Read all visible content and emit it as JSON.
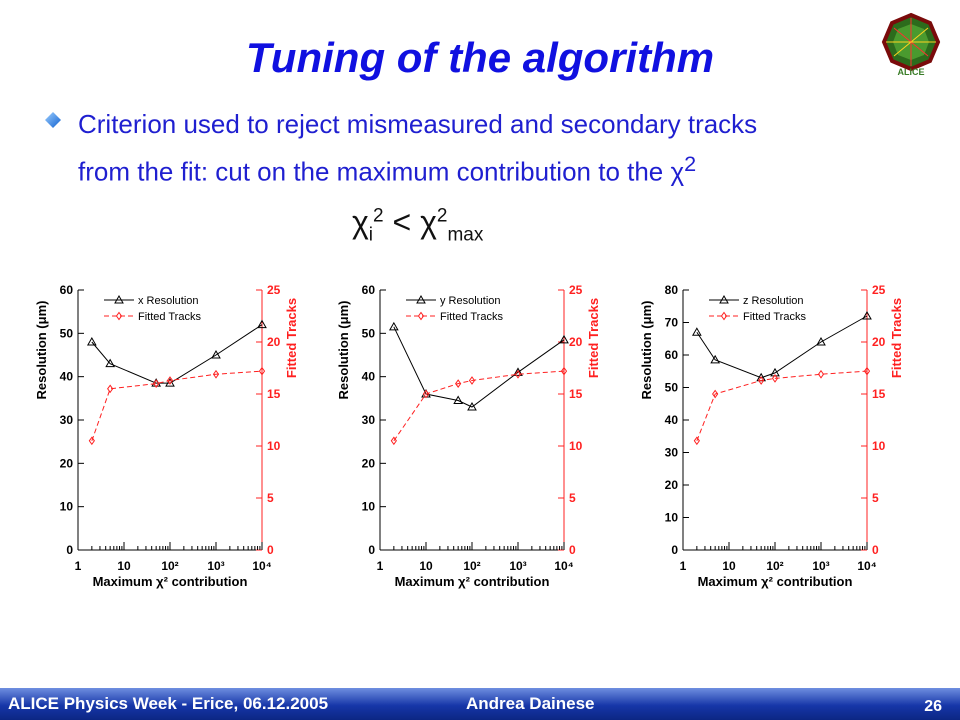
{
  "slide": {
    "title": "Tuning of the algorithm",
    "bullet_line1": "Criterion used to reject mismeasured and secondary tracks",
    "bullet_line2": "from the fit: cut on the maximum contribution to the ",
    "chi_symbol": "χ",
    "sq": "2",
    "formula": {
      "chi": "χ",
      "sub_i": "i",
      "sup2": "2",
      "lt": " < ",
      "sub_max": "max"
    }
  },
  "footer": {
    "event": "ALICE Physics Week - Erice, 06.12.2005",
    "author": "Andrea Dainese",
    "page": "26"
  },
  "logo": {
    "text": "ALICE",
    "color": "#3a7d28"
  },
  "colors": {
    "accent": "#1010e0",
    "resolution": "#000000",
    "fitted": "#ff2020"
  },
  "chart_data": [
    {
      "type": "line",
      "xscale": "log",
      "xlim": [
        1,
        10000
      ],
      "xticks": [
        "1",
        "10",
        "10²",
        "10³",
        "10⁴"
      ],
      "xlabel": "Maximum χ² contribution",
      "ylabel": "Resolution (μm)",
      "ylim": [
        0,
        60
      ],
      "yticks": [
        0,
        10,
        20,
        30,
        40,
        50,
        60
      ],
      "y2label": "Fitted Tracks",
      "y2lim": [
        0,
        25
      ],
      "y2ticks": [
        0,
        5,
        10,
        15,
        20,
        25
      ],
      "x": [
        2,
        5,
        50,
        100,
        1000,
        10000
      ],
      "series": [
        {
          "name": "x Resolution",
          "axis": "left",
          "values": [
            48,
            43,
            38.5,
            38.5,
            45,
            52
          ]
        },
        {
          "name": "Fitted Tracks",
          "axis": "right",
          "values": [
            10.5,
            15.5,
            16,
            16.3,
            16.9,
            17.2
          ]
        }
      ]
    },
    {
      "type": "line",
      "xscale": "log",
      "xlim": [
        1,
        10000
      ],
      "xticks": [
        "1",
        "10",
        "10²",
        "10³",
        "10⁴"
      ],
      "xlabel": "Maximum χ² contribution",
      "ylabel": "Resolution (μm)",
      "ylim": [
        0,
        60
      ],
      "yticks": [
        0,
        10,
        20,
        30,
        40,
        50,
        60
      ],
      "y2label": "Fitted Tracks",
      "y2lim": [
        0,
        25
      ],
      "y2ticks": [
        0,
        5,
        10,
        15,
        20,
        25
      ],
      "x": [
        2,
        10,
        50,
        100,
        1000,
        10000
      ],
      "series": [
        {
          "name": "y Resolution",
          "axis": "left",
          "values": [
            51.5,
            36,
            34.5,
            33,
            41,
            48.5
          ]
        },
        {
          "name": "Fitted Tracks",
          "axis": "right",
          "values": [
            10.5,
            15,
            16,
            16.3,
            16.9,
            17.2
          ]
        }
      ]
    },
    {
      "type": "line",
      "xscale": "log",
      "xlim": [
        1,
        10000
      ],
      "xticks": [
        "1",
        "10",
        "10²",
        "10³",
        "10⁴"
      ],
      "xlabel": "Maximum χ² contribution",
      "ylabel": "Resolution (μm)",
      "ylim": [
        0,
        80
      ],
      "yticks": [
        0,
        10,
        20,
        30,
        40,
        50,
        60,
        70,
        80
      ],
      "y2label": "Fitted Tracks",
      "y2lim": [
        0,
        25
      ],
      "y2ticks": [
        0,
        5,
        10,
        15,
        20,
        25
      ],
      "x": [
        2,
        5,
        50,
        100,
        1000,
        10000
      ],
      "series": [
        {
          "name": "z Resolution",
          "axis": "left",
          "values": [
            67,
            58.5,
            53,
            54.5,
            64,
            72
          ]
        },
        {
          "name": "Fitted Tracks",
          "axis": "right",
          "values": [
            10.5,
            15,
            16.3,
            16.5,
            16.9,
            17.2
          ]
        }
      ]
    }
  ]
}
